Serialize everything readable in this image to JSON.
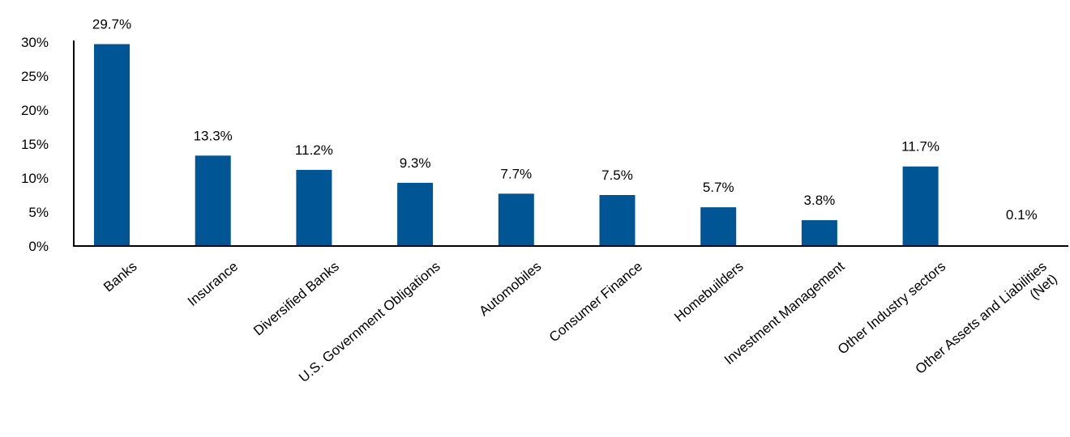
{
  "chart_data": {
    "type": "bar",
    "categories": [
      "Banks",
      "Insurance",
      "Diversified Banks",
      "U.S. Government Obligations",
      "Automobiles",
      "Consumer Finance",
      "Homebuilders",
      "Investment Management",
      "Other Industry sectors",
      [
        "Other Assets and Liabilities",
        "(Net)"
      ]
    ],
    "values": [
      29.7,
      13.3,
      11.2,
      9.3,
      7.7,
      7.5,
      5.7,
      3.8,
      11.7,
      0.1
    ],
    "data_labels": [
      "29.7%",
      "13.3%",
      "11.2%",
      "9.3%",
      "7.7%",
      "7.5%",
      "5.7%",
      "3.8%",
      "11.7%",
      "0.1%"
    ],
    "ylim": [
      0,
      30
    ],
    "yticks": [
      0,
      5,
      10,
      15,
      20,
      25,
      30
    ],
    "ytick_labels": [
      "0%",
      "5%",
      "10%",
      "15%",
      "20%",
      "25%",
      "30%"
    ],
    "title": "",
    "xlabel": "",
    "ylabel": "",
    "grid": false,
    "legend": "none",
    "bar_color": "#005595"
  }
}
